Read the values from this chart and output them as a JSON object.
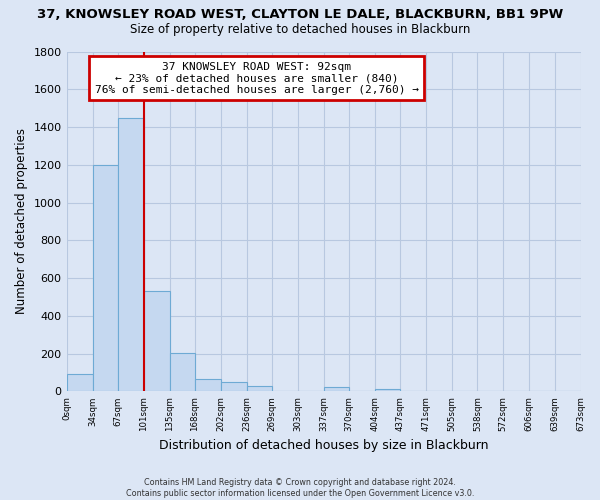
{
  "title": "37, KNOWSLEY ROAD WEST, CLAYTON LE DALE, BLACKBURN, BB1 9PW",
  "subtitle": "Size of property relative to detached houses in Blackburn",
  "xlabel": "Distribution of detached houses by size in Blackburn",
  "ylabel": "Number of detached properties",
  "bar_color": "#c5d8f0",
  "bar_edge_color": "#6eaad4",
  "background_color": "#dce6f5",
  "plot_bg_color": "#dce6f5",
  "grid_color": "#b8c8e0",
  "annotation_box_color": "#ffffff",
  "annotation_border_color": "#cc0000",
  "vertical_line_color": "#cc0000",
  "vertical_line_x": 101,
  "bins": [
    0,
    34,
    67,
    101,
    135,
    168,
    202,
    236,
    269,
    303,
    337,
    370,
    404,
    437,
    471,
    505,
    538,
    572,
    606,
    639,
    673
  ],
  "bin_labels": [
    "0sqm",
    "34sqm",
    "67sqm",
    "101sqm",
    "135sqm",
    "168sqm",
    "202sqm",
    "236sqm",
    "269sqm",
    "303sqm",
    "337sqm",
    "370sqm",
    "404sqm",
    "437sqm",
    "471sqm",
    "505sqm",
    "538sqm",
    "572sqm",
    "606sqm",
    "639sqm",
    "673sqm"
  ],
  "counts": [
    90,
    1200,
    1450,
    530,
    205,
    65,
    48,
    30,
    0,
    0,
    22,
    0,
    15,
    0,
    0,
    0,
    0,
    0,
    0,
    0
  ],
  "annotation_title": "37 KNOWSLEY ROAD WEST: 92sqm",
  "annotation_line1": "← 23% of detached houses are smaller (840)",
  "annotation_line2": "76% of semi-detached houses are larger (2,760) →",
  "footer_line1": "Contains HM Land Registry data © Crown copyright and database right 2024.",
  "footer_line2": "Contains public sector information licensed under the Open Government Licence v3.0.",
  "ylim": [
    0,
    1800
  ],
  "yticks": [
    0,
    200,
    400,
    600,
    800,
    1000,
    1200,
    1400,
    1600,
    1800
  ]
}
